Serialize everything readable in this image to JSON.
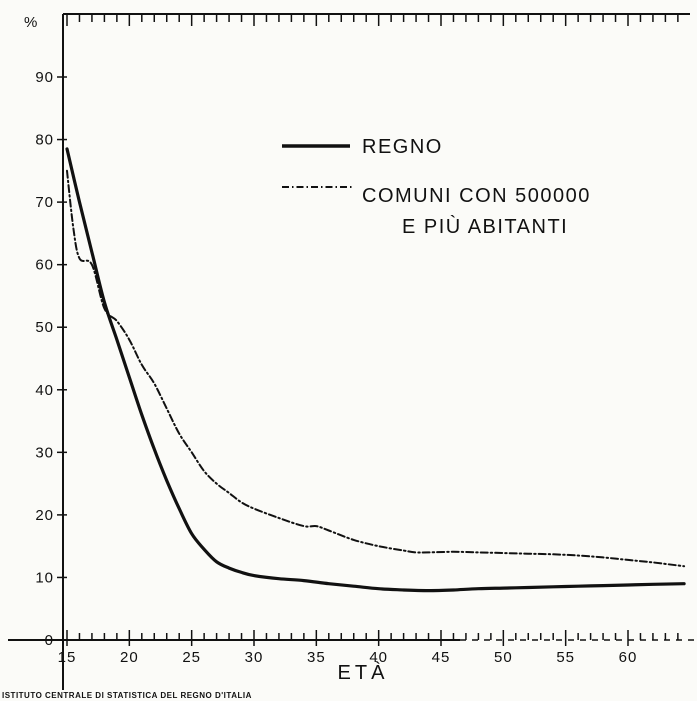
{
  "chart_data": {
    "type": "line",
    "ylabel": "%",
    "xlabel": "ETÀ",
    "xlim": [
      15,
      65
    ],
    "ylim": [
      0,
      100
    ],
    "x_ticks": [
      15,
      20,
      25,
      30,
      35,
      40,
      45,
      50,
      55,
      60
    ],
    "y_ticks": [
      0,
      10,
      20,
      30,
      40,
      50,
      60,
      70,
      80,
      90
    ],
    "legend_position": "top-right",
    "grid": false,
    "series": [
      {
        "name": "REGNO",
        "style": "solid",
        "color": "#111111",
        "x": [
          15,
          16,
          17,
          18,
          19,
          20,
          21,
          22,
          23,
          24,
          25,
          26,
          27,
          28,
          29,
          30,
          32,
          34,
          36,
          38,
          40,
          42,
          44,
          46,
          48,
          50,
          52,
          54,
          56,
          58,
          60,
          62,
          64.5
        ],
        "y": [
          78.5,
          70,
          62,
          54,
          48,
          42,
          36,
          30.5,
          25.5,
          21,
          17,
          14.5,
          12.5,
          11.5,
          10.8,
          10.3,
          9.8,
          9.5,
          9,
          8.6,
          8.2,
          8,
          7.9,
          8,
          8.2,
          8.3,
          8.4,
          8.5,
          8.6,
          8.7,
          8.8,
          8.9,
          9
        ]
      },
      {
        "name": "COMUNI CON 500000 E PIÙ ABITANTI",
        "style": "dash-dot",
        "color": "#111111",
        "x": [
          15,
          15.5,
          16,
          17,
          18,
          19,
          20,
          21,
          22,
          23,
          24,
          25,
          26,
          27,
          28,
          29,
          30,
          32,
          34,
          35,
          36,
          38,
          40,
          42,
          43,
          44,
          46,
          48,
          50,
          52,
          54,
          56,
          58,
          60,
          62,
          64.5
        ],
        "y": [
          75,
          66,
          61,
          60,
          53,
          51,
          48,
          44,
          41,
          37,
          33,
          30,
          27,
          25,
          23.5,
          22,
          21,
          19.5,
          18.2,
          18.2,
          17.5,
          16,
          15,
          14.3,
          14,
          14,
          14.1,
          14,
          13.9,
          13.8,
          13.7,
          13.5,
          13.2,
          12.8,
          12.4,
          11.8
        ]
      }
    ],
    "legend": [
      {
        "label_lines": [
          "REGNO"
        ],
        "style": "solid"
      },
      {
        "label_lines": [
          "COMUNI CON 500000",
          "E PIÙ ABITANTI"
        ],
        "style": "dash-dot"
      }
    ]
  },
  "source_note": "ISTITUTO CENTRALE DI STATISTICA DEL REGNO D'ITALIA"
}
